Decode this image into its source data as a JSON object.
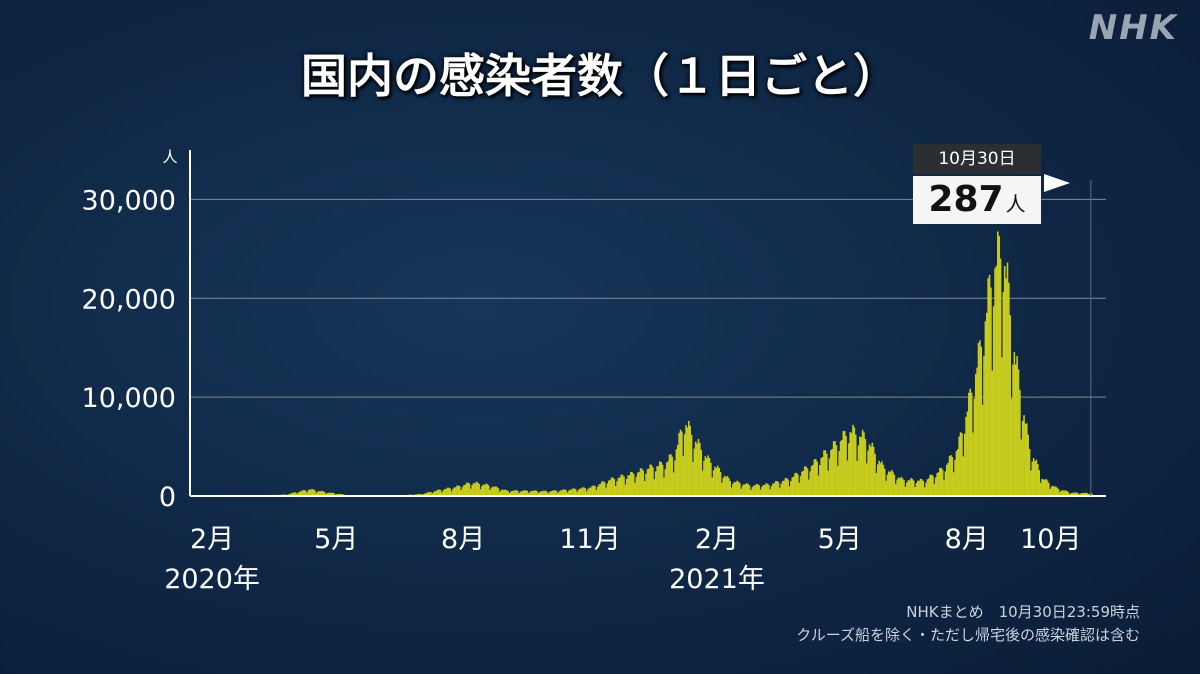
{
  "brand": {
    "logo_text": "NHK"
  },
  "title": "国内の感染者数（１日ごと）",
  "notes": {
    "source": "NHKまとめ　10月30日23:59時点",
    "caveat": "クルーズ船を除く・ただし帰宅後の感染確認は含む"
  },
  "callout": {
    "date": "10月30日",
    "value": "287",
    "unit": "人"
  },
  "chart_data": {
    "type": "bar",
    "title": "国内の感染者数（１日ごと）",
    "ylabel": "人",
    "ylim": [
      0,
      35000
    ],
    "yticks": [
      0,
      10000,
      20000,
      30000
    ],
    "ytick_labels": [
      "0",
      "10,000",
      "20,000",
      "30,000"
    ],
    "grid": true,
    "color": "#c8cc1e",
    "x_tick_labels": [
      {
        "label": "2月",
        "date": "2020-02-01"
      },
      {
        "label": "5月",
        "date": "2020-05-01"
      },
      {
        "label": "8月",
        "date": "2020-08-01"
      },
      {
        "label": "11月",
        "date": "2020-11-01"
      },
      {
        "label": "2月",
        "date": "2021-02-01"
      },
      {
        "label": "5月",
        "date": "2021-05-01"
      },
      {
        "label": "8月",
        "date": "2021-08-01"
      },
      {
        "label": "10月",
        "date": "2021-10-01"
      }
    ],
    "year_labels": [
      {
        "label": "2020年",
        "date": "2020-02-01"
      },
      {
        "label": "2021年",
        "date": "2021-02-01"
      }
    ],
    "x": [
      "2020-01-16",
      "2020-02-01",
      "2020-03-01",
      "2020-03-25",
      "2020-04-11",
      "2020-04-25",
      "2020-05-10",
      "2020-05-31",
      "2020-06-15",
      "2020-07-01",
      "2020-07-15",
      "2020-07-25",
      "2020-08-07",
      "2020-08-20",
      "2020-09-01",
      "2020-09-15",
      "2020-10-01",
      "2020-10-15",
      "2020-11-01",
      "2020-11-15",
      "2020-12-01",
      "2020-12-15",
      "2020-12-25",
      "2021-01-01",
      "2021-01-08",
      "2021-01-15",
      "2021-01-25",
      "2021-02-10",
      "2021-02-25",
      "2021-03-10",
      "2021-03-25",
      "2021-04-10",
      "2021-04-25",
      "2021-05-08",
      "2021-05-20",
      "2021-06-01",
      "2021-06-15",
      "2021-07-01",
      "2021-07-15",
      "2021-07-25",
      "2021-08-01",
      "2021-08-10",
      "2021-08-20",
      "2021-08-27",
      "2021-09-05",
      "2021-09-15",
      "2021-09-25",
      "2021-10-05",
      "2021-10-15",
      "2021-10-30"
    ],
    "values": [
      0,
      10,
      40,
      150,
      700,
      350,
      80,
      40,
      60,
      200,
      650,
      900,
      1400,
      1100,
      550,
      550,
      500,
      650,
      900,
      1700,
      2300,
      3000,
      3400,
      4500,
      7800,
      6000,
      3800,
      1600,
      1100,
      1200,
      1800,
      3200,
      5000,
      6800,
      6000,
      3000,
      1700,
      1600,
      2900,
      5000,
      9000,
      15000,
      24000,
      25800,
      14000,
      5000,
      1800,
      800,
      350,
      287
    ]
  }
}
